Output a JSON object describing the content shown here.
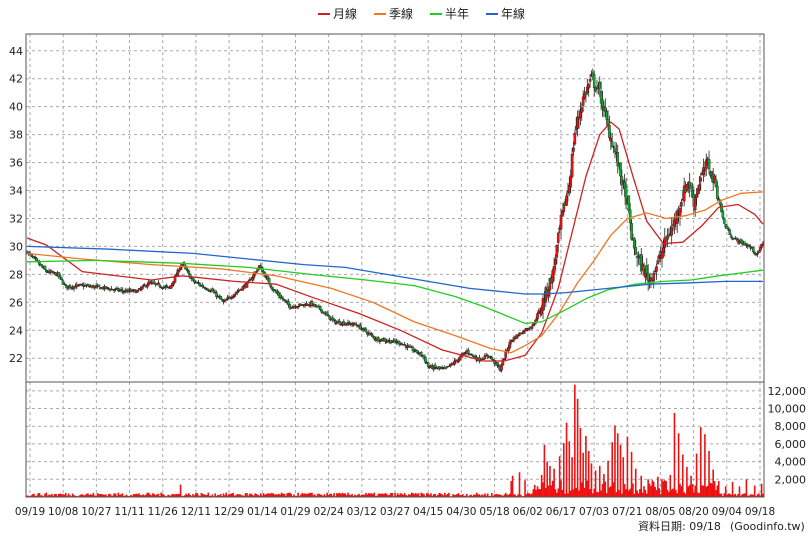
{
  "chart_data": [
    {
      "type": "candlestick",
      "legend": [
        {
          "name": "月線",
          "color": "#cc2222"
        },
        {
          "name": "季線",
          "color": "#ee7722"
        },
        {
          "name": "半年",
          "color": "#22cc22"
        },
        {
          "name": "年線",
          "color": "#2266cc"
        }
      ],
      "legend_position": "top-center",
      "grid": true,
      "ylim": [
        20.3,
        45.2
      ],
      "y_ticks": [
        "22",
        "24",
        "26",
        "28",
        "30",
        "32",
        "34",
        "36",
        "38",
        "40",
        "42",
        "44"
      ],
      "x_tick_labels": [
        "09/19",
        "10/08",
        "10/27",
        "11/11",
        "11/26",
        "12/11",
        "12/29",
        "01/14",
        "01/29",
        "02/24",
        "03/12",
        "03/27",
        "04/15",
        "04/30",
        "05/18",
        "06/02",
        "06/17",
        "07/03",
        "07/21",
        "08/05",
        "08/20",
        "09/04",
        "09/18"
      ],
      "up_color": "#ee1111",
      "down_color": "#11aa33",
      "close_path": [
        [
          0,
          29.6
        ],
        [
          14,
          28.2
        ],
        [
          22,
          28.0
        ],
        [
          28,
          27.1
        ],
        [
          40,
          27.2
        ],
        [
          58,
          27.0
        ],
        [
          70,
          26.8
        ],
        [
          80,
          26.8
        ],
        [
          88,
          27.4
        ],
        [
          103,
          27.0
        ],
        [
          112,
          28.8
        ],
        [
          120,
          27.5
        ],
        [
          134,
          26.8
        ],
        [
          142,
          26.0
        ],
        [
          160,
          27.4
        ],
        [
          168,
          28.6
        ],
        [
          178,
          26.9
        ],
        [
          190,
          25.7
        ],
        [
          205,
          25.9
        ],
        [
          212,
          25.5
        ],
        [
          222,
          24.6
        ],
        [
          238,
          24.4
        ],
        [
          252,
          23.4
        ],
        [
          270,
          23.1
        ],
        [
          286,
          22.2
        ],
        [
          290,
          21.4
        ],
        [
          302,
          21.2
        ],
        [
          310,
          21.8
        ],
        [
          318,
          22.5
        ],
        [
          326,
          21.9
        ],
        [
          334,
          22.2
        ],
        [
          342,
          21.2
        ],
        [
          346,
          22.4
        ],
        [
          350,
          23.3
        ],
        [
          358,
          23.9
        ],
        [
          366,
          24.4
        ],
        [
          372,
          25.8
        ],
        [
          380,
          28.0
        ],
        [
          386,
          31.8
        ],
        [
          392,
          34.5
        ],
        [
          396,
          38.2
        ],
        [
          402,
          40.6
        ],
        [
          408,
          42.0
        ],
        [
          414,
          41.0
        ],
        [
          420,
          38.5
        ],
        [
          426,
          36.4
        ],
        [
          434,
          33.0
        ],
        [
          438,
          30.1
        ],
        [
          444,
          28.6
        ],
        [
          450,
          27.6
        ],
        [
          456,
          28.8
        ],
        [
          462,
          30.5
        ],
        [
          468,
          31.7
        ],
        [
          474,
          33.7
        ],
        [
          478,
          34.7
        ],
        [
          482,
          33.2
        ],
        [
          486,
          34.6
        ],
        [
          492,
          36.0
        ],
        [
          498,
          34.3
        ],
        [
          504,
          31.6
        ],
        [
          510,
          30.6
        ],
        [
          516,
          30.3
        ],
        [
          522,
          30.0
        ],
        [
          528,
          29.4
        ],
        [
          532,
          30.3
        ]
      ],
      "series": [
        {
          "name": "月線",
          "values": [
            [
              0,
              30.6
            ],
            [
              14,
              30.1
            ],
            [
              40,
              28.2
            ],
            [
              90,
              27.6
            ],
            [
              112,
              27.9
            ],
            [
              150,
              27.5
            ],
            [
              180,
              27.3
            ],
            [
              205,
              26.4
            ],
            [
              240,
              25.2
            ],
            [
              270,
              24.0
            ],
            [
              300,
              22.6
            ],
            [
              330,
              21.8
            ],
            [
              345,
              21.8
            ],
            [
              360,
              22.2
            ],
            [
              372,
              23.8
            ],
            [
              384,
              27.0
            ],
            [
              394,
              31.0
            ],
            [
              404,
              35.0
            ],
            [
              414,
              38.0
            ],
            [
              422,
              38.9
            ],
            [
              428,
              38.4
            ],
            [
              438,
              35.0
            ],
            [
              448,
              31.8
            ],
            [
              460,
              30.2
            ],
            [
              474,
              30.3
            ],
            [
              488,
              31.5
            ],
            [
              500,
              32.8
            ],
            [
              514,
              33.0
            ],
            [
              526,
              32.3
            ],
            [
              532,
              31.6
            ]
          ]
        },
        {
          "name": "季線",
          "values": [
            [
              0,
              29.5
            ],
            [
              40,
              29.1
            ],
            [
              90,
              28.7
            ],
            [
              140,
              28.4
            ],
            [
              180,
              27.9
            ],
            [
              220,
              27.0
            ],
            [
              250,
              26.0
            ],
            [
              280,
              24.6
            ],
            [
              310,
              23.6
            ],
            [
              335,
              22.7
            ],
            [
              350,
              22.4
            ],
            [
              360,
              22.9
            ],
            [
              372,
              23.6
            ],
            [
              385,
              25.3
            ],
            [
              398,
              27.4
            ],
            [
              410,
              29.0
            ],
            [
              422,
              30.8
            ],
            [
              434,
              32.0
            ],
            [
              448,
              32.4
            ],
            [
              462,
              32.0
            ],
            [
              476,
              32.2
            ],
            [
              490,
              32.6
            ],
            [
              502,
              33.3
            ],
            [
              516,
              33.8
            ],
            [
              532,
              33.9
            ]
          ]
        },
        {
          "name": "半年",
          "values": [
            [
              0,
              28.9
            ],
            [
              50,
              29.0
            ],
            [
              110,
              28.8
            ],
            [
              160,
              28.5
            ],
            [
              205,
              28.0
            ],
            [
              245,
              27.6
            ],
            [
              280,
              27.2
            ],
            [
              310,
              26.4
            ],
            [
              330,
              25.7
            ],
            [
              345,
              25.1
            ],
            [
              360,
              24.5
            ],
            [
              372,
              24.6
            ],
            [
              390,
              25.5
            ],
            [
              405,
              26.3
            ],
            [
              420,
              26.9
            ],
            [
              440,
              27.3
            ],
            [
              460,
              27.5
            ],
            [
              480,
              27.6
            ],
            [
              500,
              27.9
            ],
            [
              516,
              28.1
            ],
            [
              532,
              28.3
            ]
          ]
        },
        {
          "name": "年線",
          "values": [
            [
              0,
              30.0
            ],
            [
              60,
              29.8
            ],
            [
              120,
              29.5
            ],
            [
              160,
              29.1
            ],
            [
              200,
              28.7
            ],
            [
              230,
              28.5
            ],
            [
              260,
              28.0
            ],
            [
              290,
              27.5
            ],
            [
              320,
              27.0
            ],
            [
              340,
              26.8
            ],
            [
              360,
              26.6
            ],
            [
              372,
              26.6
            ],
            [
              390,
              26.7
            ],
            [
              420,
              27.0
            ],
            [
              450,
              27.3
            ],
            [
              480,
              27.4
            ],
            [
              505,
              27.5
            ],
            [
              532,
              27.5
            ]
          ]
        }
      ]
    },
    {
      "type": "bar",
      "name": "volume",
      "y_ticks": [
        "2,000",
        "4,000",
        "6,000",
        "8,000",
        "10,000",
        "12,000"
      ],
      "ylim": [
        0,
        13000
      ],
      "color": "#ee1111",
      "spikes": [
        {
          "i": 111,
          "v": 1400
        },
        {
          "i": 350,
          "v": 1800
        },
        {
          "i": 351,
          "v": 2400
        },
        {
          "i": 356,
          "v": 2800
        },
        {
          "i": 360,
          "v": 1900
        },
        {
          "i": 372,
          "v": 2500
        },
        {
          "i": 374,
          "v": 5900
        },
        {
          "i": 376,
          "v": 4000
        },
        {
          "i": 378,
          "v": 3500
        },
        {
          "i": 381,
          "v": 3200
        },
        {
          "i": 385,
          "v": 4600
        },
        {
          "i": 388,
          "v": 6100
        },
        {
          "i": 390,
          "v": 8400
        },
        {
          "i": 392,
          "v": 6300
        },
        {
          "i": 394,
          "v": 4500
        },
        {
          "i": 396,
          "v": 12700
        },
        {
          "i": 398,
          "v": 11100
        },
        {
          "i": 400,
          "v": 7800
        },
        {
          "i": 402,
          "v": 5000
        },
        {
          "i": 404,
          "v": 6900
        },
        {
          "i": 406,
          "v": 5200
        },
        {
          "i": 408,
          "v": 3800
        },
        {
          "i": 411,
          "v": 3000
        },
        {
          "i": 414,
          "v": 3500
        },
        {
          "i": 417,
          "v": 2600
        },
        {
          "i": 420,
          "v": 4100
        },
        {
          "i": 423,
          "v": 6200
        },
        {
          "i": 425,
          "v": 8100
        },
        {
          "i": 427,
          "v": 7200
        },
        {
          "i": 429,
          "v": 5900
        },
        {
          "i": 431,
          "v": 4500
        },
        {
          "i": 434,
          "v": 6800
        },
        {
          "i": 437,
          "v": 5100
        },
        {
          "i": 440,
          "v": 3200
        },
        {
          "i": 444,
          "v": 2400
        },
        {
          "i": 449,
          "v": 2000
        },
        {
          "i": 452,
          "v": 1900
        },
        {
          "i": 456,
          "v": 2300
        },
        {
          "i": 459,
          "v": 2000
        },
        {
          "i": 462,
          "v": 1800
        },
        {
          "i": 465,
          "v": 2500
        },
        {
          "i": 468,
          "v": 9500
        },
        {
          "i": 471,
          "v": 7200
        },
        {
          "i": 474,
          "v": 4800
        },
        {
          "i": 477,
          "v": 3400
        },
        {
          "i": 480,
          "v": 2400
        },
        {
          "i": 484,
          "v": 4900
        },
        {
          "i": 487,
          "v": 7900
        },
        {
          "i": 490,
          "v": 7100
        },
        {
          "i": 493,
          "v": 5200
        },
        {
          "i": 496,
          "v": 3100
        },
        {
          "i": 500,
          "v": 1800
        },
        {
          "i": 505,
          "v": 1200
        },
        {
          "i": 510,
          "v": 1700
        },
        {
          "i": 515,
          "v": 1200
        },
        {
          "i": 520,
          "v": 2000
        },
        {
          "i": 526,
          "v": 1300
        },
        {
          "i": 531,
          "v": 1500
        }
      ]
    }
  ],
  "footer": {
    "label": "資料日期: 09/18",
    "source": "(Goodinfo.tw)"
  }
}
